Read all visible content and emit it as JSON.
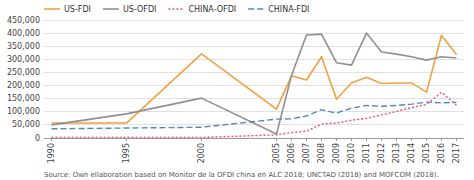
{
  "chart_data": {
    "type": "line",
    "x": [
      1990,
      1995,
      2000,
      2005,
      2006,
      2007,
      2008,
      2009,
      2010,
      2011,
      2012,
      2013,
      2014,
      2015,
      2016,
      2017
    ],
    "series": [
      {
        "name": "US-FDI",
        "color": "#F4A041",
        "line_style": "solid",
        "values": [
          57000,
          57000,
          321000,
          110000,
          237000,
          221000,
          310000,
          148000,
          210000,
          232000,
          208000,
          210000,
          210000,
          175000,
          391000,
          318000
        ]
      },
      {
        "name": "US-OFDI",
        "color": "#909090",
        "line_style": "solid",
        "values": [
          50000,
          92000,
          152000,
          15000,
          238000,
          393000,
          396000,
          287000,
          278000,
          400000,
          328000,
          320000,
          310000,
          297000,
          310000,
          305000
        ]
      },
      {
        "name": "CHINA-OFDI",
        "color": "#E8507A",
        "line_style": "dotted",
        "values": [
          2000,
          2000,
          2000,
          12000,
          21000,
          26000,
          53000,
          57000,
          68000,
          75000,
          88000,
          101000,
          116000,
          128000,
          174000,
          125000
        ]
      },
      {
        "name": "CHINA-FDI",
        "color": "#5585C8",
        "line_style": "dashed",
        "values": [
          35000,
          38000,
          41000,
          72000,
          73000,
          84000,
          108000,
          95000,
          114000,
          124000,
          121000,
          124000,
          129000,
          137000,
          134000,
          136000
        ]
      }
    ],
    "xlim": [
      1989.5,
      2017.5
    ],
    "xticks": [
      1990,
      1995,
      2000,
      2005,
      2006,
      2007,
      2008,
      2009,
      2010,
      2011,
      2012,
      2013,
      2014,
      2015,
      2016,
      2017
    ],
    "ylim": [
      0,
      450000
    ],
    "yticks": [
      0,
      {
        "value": 50000,
        "label": "50,000"
      },
      {
        "value": 100000,
        "label": "100,000"
      },
      {
        "value": 150000,
        "label": "150,000"
      },
      {
        "value": 200000,
        "label": "200,000"
      },
      {
        "value": 250000,
        "label": "250,000"
      },
      {
        "value": 300000,
        "label": "300,000"
      },
      {
        "value": 350000,
        "label": "350,000"
      },
      {
        "value": 400000,
        "label": "400,000"
      },
      {
        "value": 450000,
        "label": "450,000"
      }
    ],
    "grid": true,
    "legend": "upper left",
    "annotations": [
      "Source: Own ellaboration based on Monitor de la OFDI china en ALC 2018; UNCTAD (2018) and MOFCOM (2018)."
    ]
  }
}
